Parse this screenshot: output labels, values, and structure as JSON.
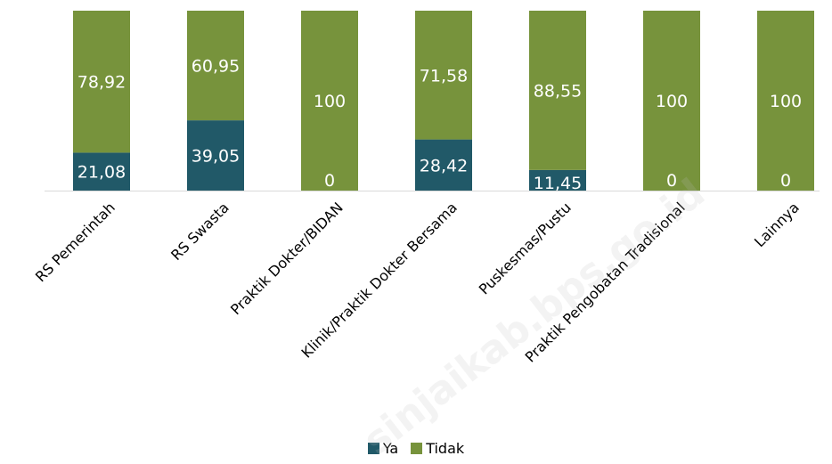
{
  "chart_data": {
    "type": "bar",
    "stacked": true,
    "categories": [
      "RS Pemerintah",
      "RS Swasta",
      "Praktik Dokter/BIDAN",
      "Klinik/Praktik Dokter Bersama",
      "Puskesmas/Pustu",
      "Praktik Pengobatan Tradisional",
      "Lainnya"
    ],
    "series": [
      {
        "name": "Ya",
        "color": "#215968",
        "values": [
          21.08,
          39.05,
          0,
          28.42,
          11.45,
          0,
          0
        ],
        "labels": [
          "21,08",
          "39,05",
          "0",
          "28,42",
          "11,45",
          "0",
          "0"
        ]
      },
      {
        "name": "Tidak",
        "color": "#77933c",
        "values": [
          78.92,
          60.95,
          100,
          71.58,
          88.55,
          100,
          100
        ],
        "labels": [
          "78,92",
          "60,95",
          "100",
          "71,58",
          "88,55",
          "100",
          "100"
        ]
      }
    ],
    "ylim": [
      0,
      100
    ],
    "grid": false,
    "legend": "bottom-center",
    "title": "",
    "xlabel": "",
    "ylabel": ""
  },
  "watermark": "sinjaikab.bps.go.id"
}
